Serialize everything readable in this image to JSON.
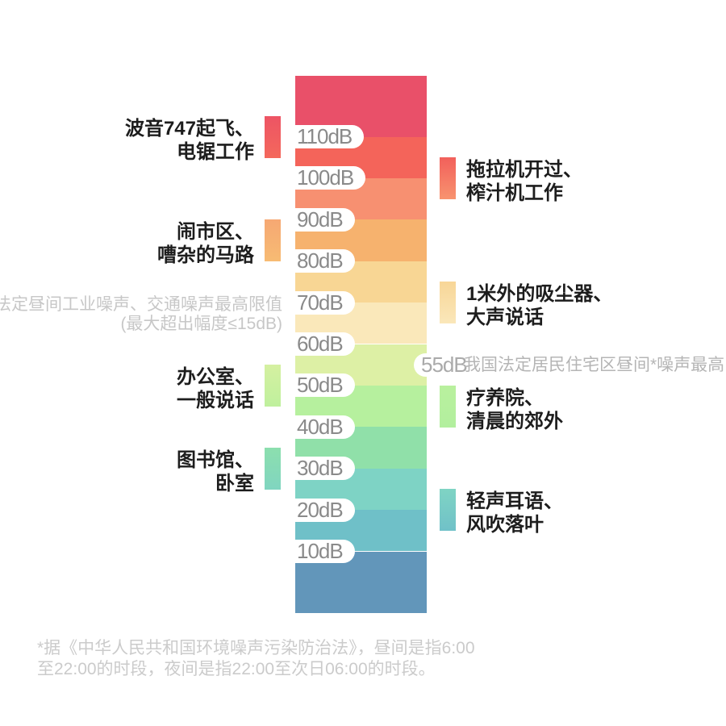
{
  "chart_data": {
    "type": "bar",
    "variant": "vertical-decibel-color-scale",
    "unit": "dB",
    "axis_range_dB": [
      0,
      120
    ],
    "ticks": [
      "110dB",
      "100dB",
      "90dB",
      "80dB",
      "70dB",
      "60dB",
      "50dB",
      "40dB",
      "30dB",
      "20dB",
      "10dB"
    ],
    "bands": [
      {
        "range_dB": "110-120",
        "color": "#e95069"
      },
      {
        "range_dB": "100-110",
        "color": "#f4645a"
      },
      {
        "range_dB": "90-100",
        "color": "#f79071"
      },
      {
        "range_dB": "80-90",
        "color": "#f6b26e"
      },
      {
        "range_dB": "70-80",
        "color": "#f8d694"
      },
      {
        "range_dB": "60-70",
        "color": "#fae8ba"
      },
      {
        "range_dB": "50-60",
        "color": "#ddf0a5"
      },
      {
        "range_dB": "40-50",
        "color": "#b6f09e"
      },
      {
        "range_dB": "30-40",
        "color": "#90e0a9"
      },
      {
        "range_dB": "20-30",
        "color": "#7ed3c5"
      },
      {
        "range_dB": "10-20",
        "color": "#6fc0c8"
      },
      {
        "range_dB": "0-10",
        "color": "#6296ba"
      }
    ],
    "left_annotations": [
      {
        "lines": [
          "波音747起飞、",
          "电锯工作"
        ],
        "level_dB": 110,
        "swatch_top_color": "#ed5464",
        "swatch_bottom_color": "#f4685c"
      },
      {
        "lines": [
          "闹市区、",
          "嘈杂的马路"
        ],
        "level_dB": 85,
        "swatch_top_color": "#f6a873",
        "swatch_bottom_color": "#f7bb73"
      },
      {
        "lines": [
          "办公室、",
          "一般说话"
        ],
        "level_dB": 50,
        "swatch_top_color": "#d5f0a1",
        "swatch_bottom_color": "#bff09d"
      },
      {
        "lines": [
          "图书馆、",
          "卧室"
        ],
        "level_dB": 30,
        "swatch_top_color": "#8cdfae",
        "swatch_bottom_color": "#80d5c0"
      }
    ],
    "right_annotations": [
      {
        "lines": [
          "拖拉机开过、",
          "榨汁机工作"
        ],
        "level_dB": 100,
        "swatch_top_color": "#f2605b",
        "swatch_bottom_color": "#f8936f"
      },
      {
        "lines": [
          "1米外的吸尘器、",
          "大声说话"
        ],
        "level_dB": 70,
        "swatch_top_color": "#f8d697",
        "swatch_bottom_color": "#fae7ba"
      },
      {
        "lines": [
          "疗养院、",
          "清晨的郊外"
        ],
        "level_dB": 45,
        "swatch_top_color": "#b9f09e",
        "swatch_bottom_color": "#b2ef9e"
      },
      {
        "lines": [
          "轻声耳语、",
          "风吹落叶"
        ],
        "level_dB": 20,
        "swatch_top_color": "#7fd4c4",
        "swatch_bottom_color": "#70c1c8"
      }
    ],
    "limit_annotations": {
      "industrial": {
        "line1": "我国法定昼间工业噪声、交通噪声最高限值",
        "line2": "(最大超出幅度≤15dB)",
        "color": "#c7c7c7"
      },
      "residential": {
        "badge": "55dB",
        "level_dB": 55,
        "text": "我国法定居民住宅区昼间*噪声最高限值",
        "color": "#b5b5b5"
      }
    },
    "footnote": {
      "line1": "*据《中华人民共和国环境噪声污染防治法》，昼间是指6:00",
      "line2": "至22:00的时段，夜间是指22:00至次日06:00的时段。",
      "color": "#cbcbcb"
    }
  }
}
